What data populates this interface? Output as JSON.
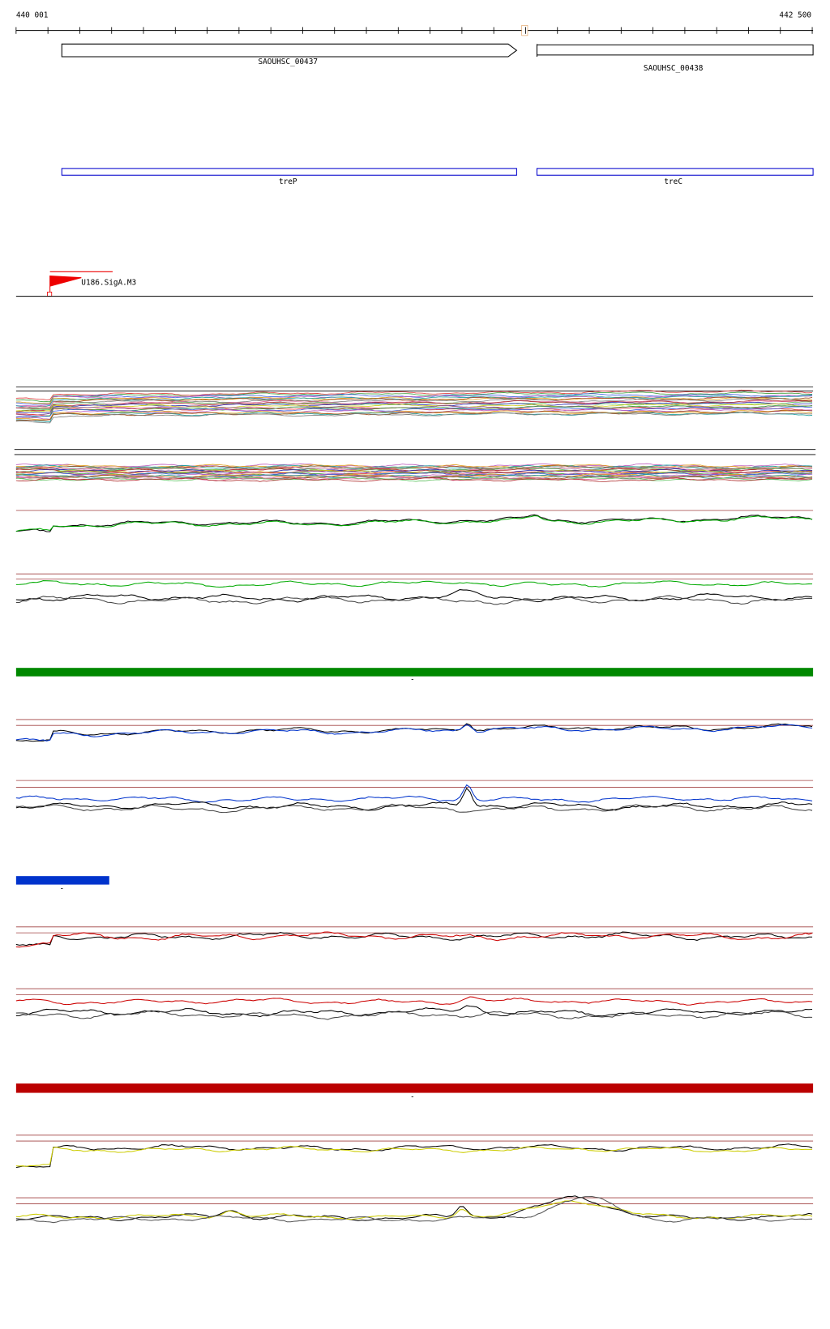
{
  "ruler": {
    "start": "440 001",
    "end": "442 500"
  },
  "genes": [
    {
      "label": "SAOUHSC_00437"
    },
    {
      "label": "SAOUHSC_00438"
    }
  ],
  "features": [
    {
      "label": "treP"
    },
    {
      "label": "treC"
    }
  ],
  "sites": [
    {
      "label": "U186.SigA.M3"
    }
  ],
  "bars": [
    {
      "label": "-"
    },
    {
      "label": "-"
    },
    {
      "label": "-"
    }
  ]
}
